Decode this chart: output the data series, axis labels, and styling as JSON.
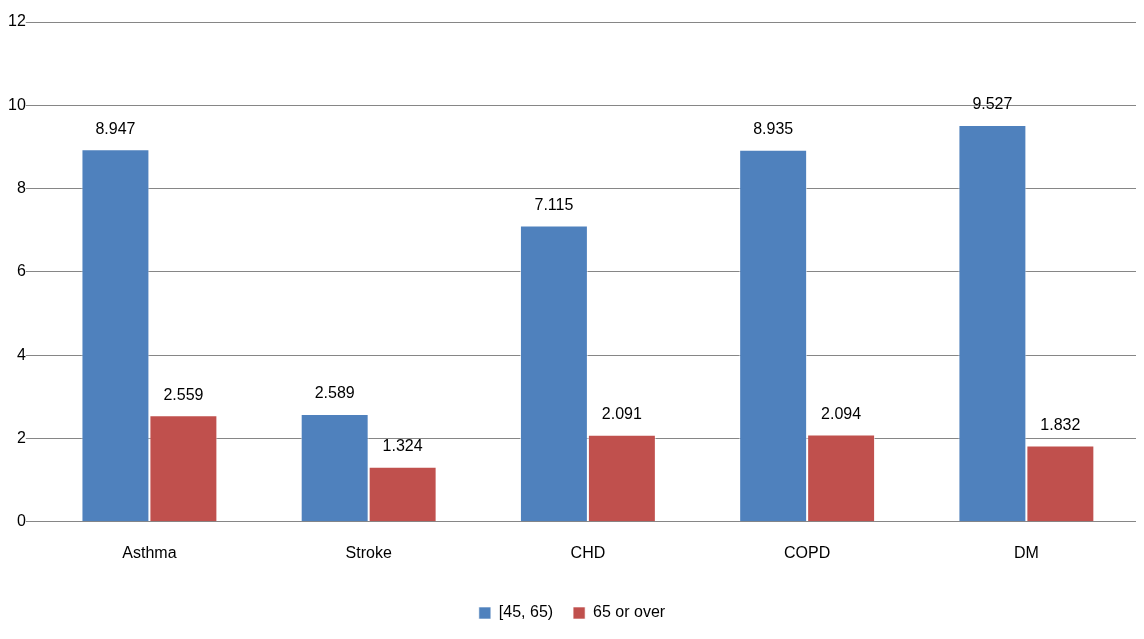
{
  "chart_data": {
    "type": "bar",
    "categories": [
      "Asthma",
      "Stroke",
      "CHD",
      "COPD",
      "DM"
    ],
    "series": [
      {
        "name": "[45, 65)",
        "color": "#4f81bd",
        "values": [
          8.947,
          2.589,
          7.115,
          8.935,
          9.527
        ]
      },
      {
        "name": "65 or over",
        "color": "#c0504d",
        "values": [
          2.559,
          1.324,
          2.091,
          2.094,
          1.832
        ]
      }
    ],
    "ylim": [
      0,
      12
    ],
    "yticks": [
      0,
      2,
      4,
      6,
      8,
      10,
      12
    ],
    "grid": "y",
    "legend": "bottom",
    "data_labels": true
  }
}
